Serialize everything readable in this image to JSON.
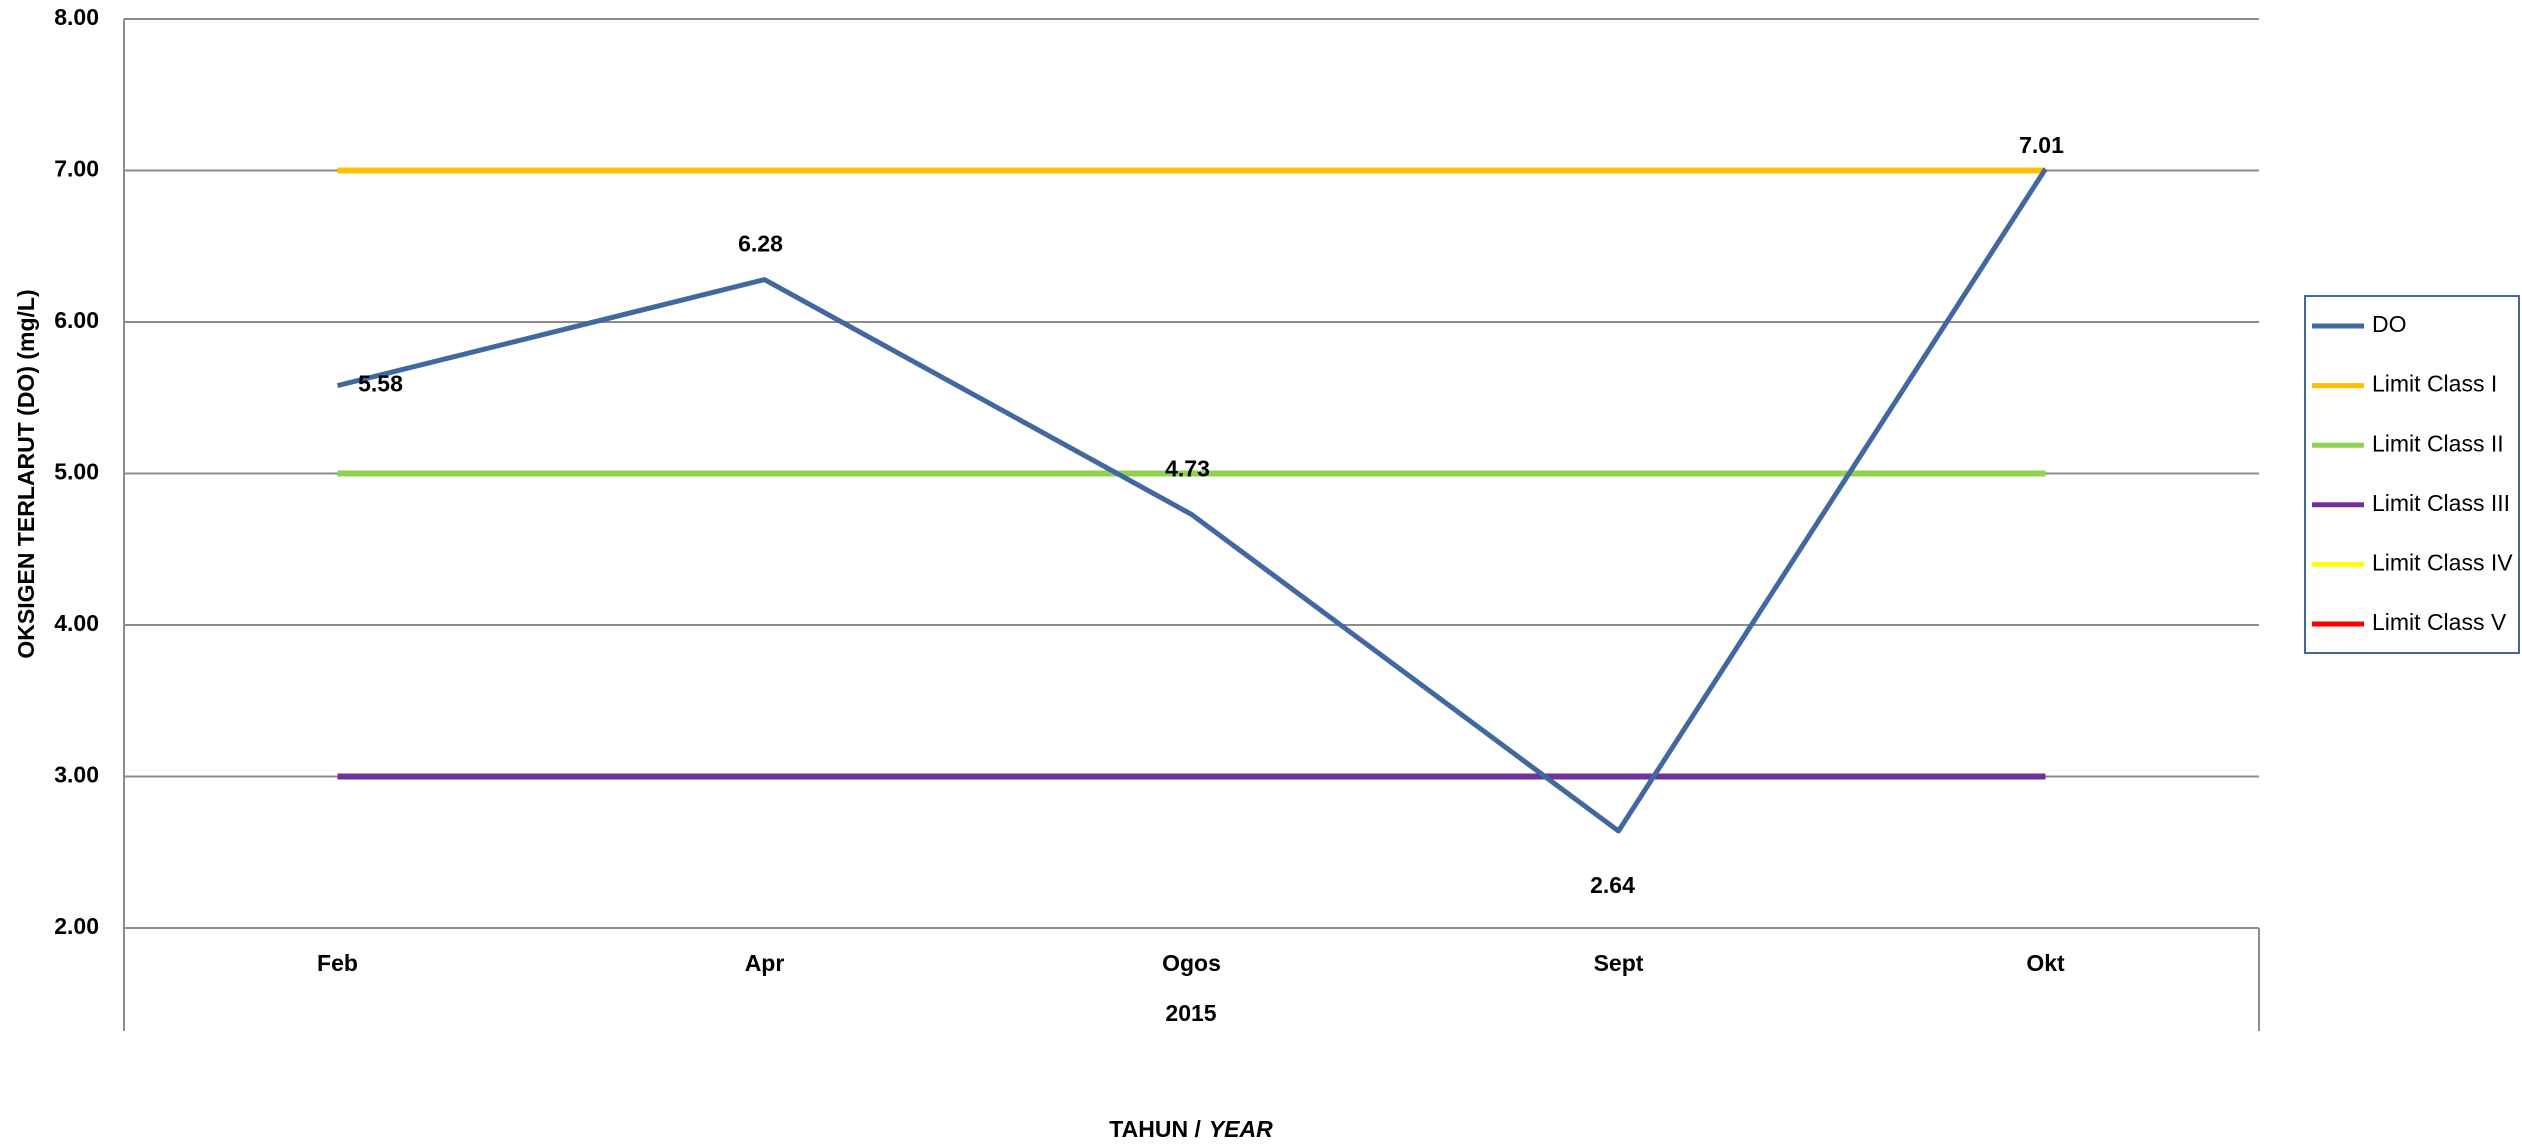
{
  "chart_data": {
    "type": "line",
    "categories": [
      "Feb",
      "Apr",
      "Ogos",
      "Sept",
      "Okt"
    ],
    "category_group": "2015",
    "ylabel": "OKSIGEN TERLARUT (DO) (mg/L)",
    "xlabel": {
      "text": "TAHUN /",
      "emphasis": "YEAR"
    },
    "ylim": [
      2,
      8
    ],
    "yticks": [
      {
        "value": 2,
        "label": "2.00"
      },
      {
        "value": 3,
        "label": "3.00"
      },
      {
        "value": 4,
        "label": "4.00"
      },
      {
        "value": 5,
        "label": "5.00"
      },
      {
        "value": 6,
        "label": "6.00"
      },
      {
        "value": 7,
        "label": "7.00"
      },
      {
        "value": 8,
        "label": "8.00"
      }
    ],
    "grid": true,
    "legend": "right",
    "series": [
      {
        "name": "DO",
        "color": "#41699f",
        "values": [
          5.58,
          6.28,
          4.73,
          2.64,
          7.01
        ],
        "data_labels": true
      },
      {
        "name": "Limit Class I",
        "color": "#ffc000",
        "values": [
          7,
          7,
          7,
          7,
          7
        ]
      },
      {
        "name": "Limit Class II",
        "color": "#92d050",
        "values": [
          5,
          5,
          5,
          5,
          5
        ]
      },
      {
        "name": "Limit Class III",
        "color": "#7030a0",
        "values": [
          3,
          3,
          3,
          3,
          3
        ]
      },
      {
        "name": "Limit Class IV",
        "color": "#ffff00",
        "values": [
          null,
          null,
          null,
          null,
          null
        ]
      },
      {
        "name": "Limit Class V",
        "color": "#ff0000",
        "values": [
          null,
          null,
          null,
          null,
          null
        ]
      }
    ]
  }
}
